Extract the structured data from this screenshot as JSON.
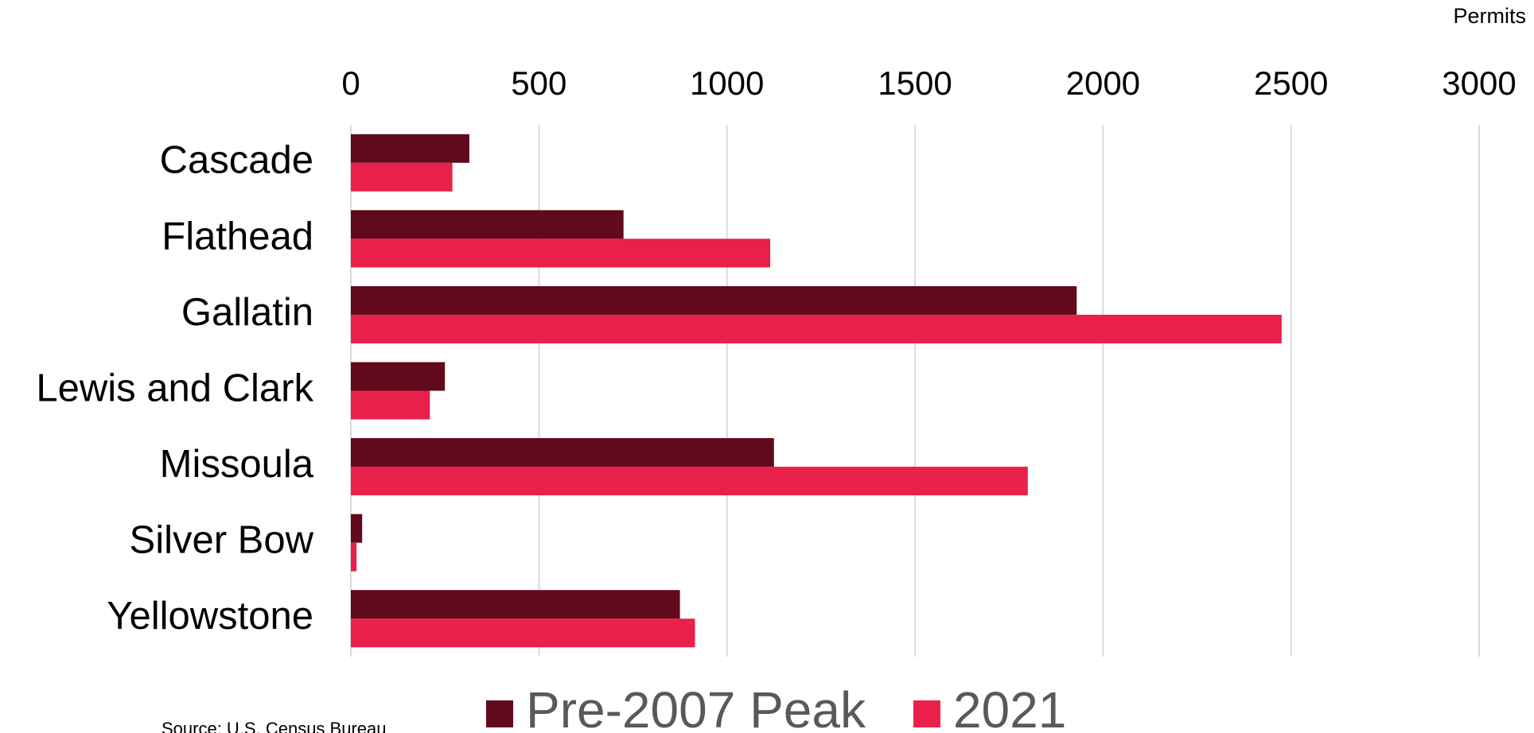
{
  "chart_data": {
    "type": "hbar",
    "x_label": "Permits",
    "source": "Source:  U.S. Census Bureau",
    "categories": [
      "Cascade",
      "Flathead",
      "Gallatin",
      "Lewis and Clark",
      "Missoula",
      "Silver Bow",
      "Yellowstone"
    ],
    "series": [
      {
        "name": "Pre-2007 Peak",
        "color": "#600a1c",
        "values": [
          315,
          725,
          1930,
          250,
          1125,
          30,
          875
        ]
      },
      {
        "name": "2021",
        "color": "#e8204a",
        "values": [
          270,
          1115,
          2475,
          210,
          1800,
          15,
          915
        ]
      }
    ],
    "xlim": [
      0,
      3000
    ],
    "xticks": [
      0,
      500,
      1000,
      1500,
      2000,
      2500,
      3000
    ],
    "grid": true
  }
}
